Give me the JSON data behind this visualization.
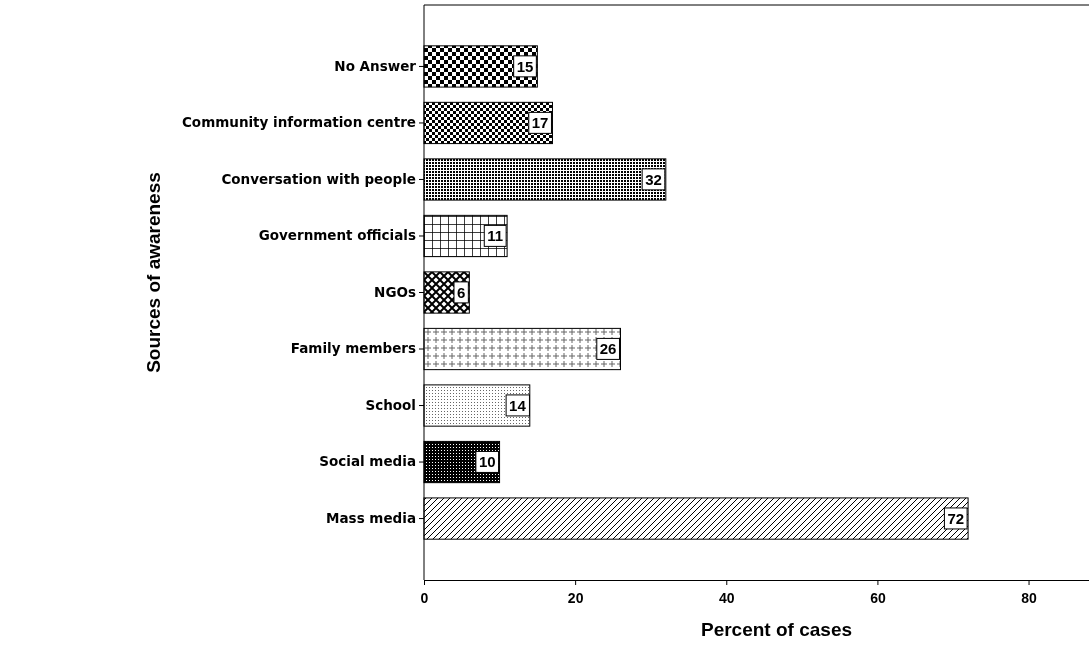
{
  "chart_data": {
    "type": "bar",
    "orientation": "horizontal",
    "xlabel": "Percent of cases",
    "ylabel": "Sources of awareness",
    "categories": [
      "No Answer",
      "Community information centre",
      "Conversation with people",
      "Government officials",
      "NGOs",
      "Family members",
      "School",
      "Social media",
      "Mass media"
    ],
    "values": [
      15,
      17,
      32,
      11,
      6,
      26,
      14,
      10,
      72
    ],
    "colors": [
      "#000000",
      "#000000",
      "#000000",
      "#000000",
      "#000000",
      "#000000",
      "#000000",
      "#000000",
      "#000000"
    ],
    "xlim": [
      0,
      88
    ],
    "xticks": [
      0,
      20,
      40,
      60,
      80
    ],
    "grid": false,
    "data_labels": true
  }
}
